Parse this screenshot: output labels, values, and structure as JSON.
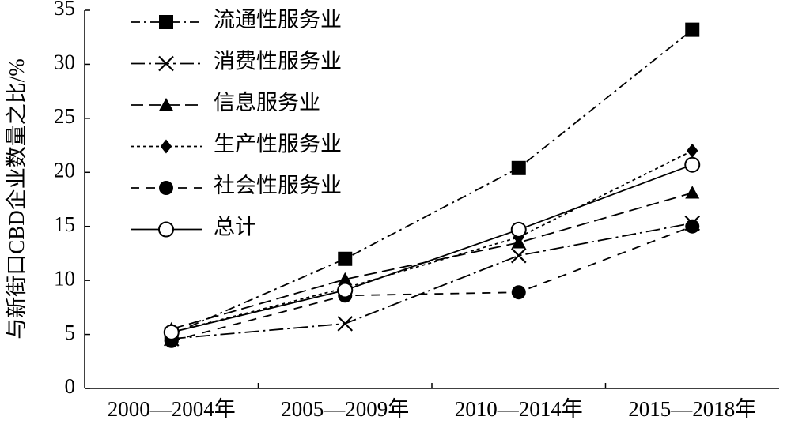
{
  "chart_data": {
    "type": "line",
    "y_label": "与新街口CBD企业数量之比/%",
    "categories": [
      "2000—2004年",
      "2005—2009年",
      "2010—2014年",
      "2015—2018年"
    ],
    "ylim": [
      0,
      35
    ],
    "yticks": [
      0,
      5,
      10,
      15,
      20,
      25,
      30,
      35
    ],
    "legend": "upper left",
    "series": [
      {
        "name": "流通性服务业",
        "color": "#000000",
        "marker": "square",
        "dash": "dashdot",
        "values": [
          5.0,
          12.0,
          20.4,
          33.2
        ]
      },
      {
        "name": "消费性服务业",
        "color": "#000000",
        "marker": "x",
        "dash": "longdashdot",
        "values": [
          4.6,
          6.0,
          12.3,
          15.3
        ]
      },
      {
        "name": "信息服务业",
        "color": "#000000",
        "marker": "triangle",
        "dash": "longdash",
        "values": [
          5.5,
          10.1,
          13.5,
          18.1
        ]
      },
      {
        "name": "生产性服务业",
        "color": "#000000",
        "marker": "diamond",
        "dash": "dotted",
        "values": [
          5.2,
          9.3,
          14.0,
          22.0
        ]
      },
      {
        "name": "社会性服务业",
        "color": "#000000",
        "marker": "circle",
        "dash": "dashed",
        "values": [
          4.4,
          8.6,
          8.9,
          15.0
        ]
      },
      {
        "name": "总计",
        "color": "#000000",
        "marker": "open-circle",
        "dash": "solid",
        "values": [
          5.2,
          9.1,
          14.7,
          20.7
        ]
      }
    ]
  }
}
